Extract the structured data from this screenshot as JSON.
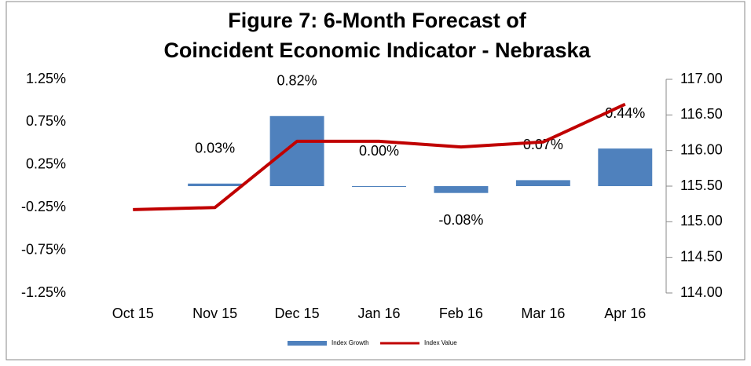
{
  "chart_data": {
    "type": "bar_line",
    "title": [
      "Figure 7: 6-Month Forecast of",
      "Coincident Economic Indicator - Nebraska"
    ],
    "categories": [
      "Oct 15",
      "Nov 15",
      "Dec 15",
      "Jan 16",
      "Feb 16",
      "Mar 16",
      "Apr 16"
    ],
    "series": [
      {
        "name": "Index Growth",
        "type": "bar",
        "color": "#4f81bd",
        "axis": "y",
        "values": [
          null,
          0.03,
          0.82,
          0.0,
          -0.08,
          0.07,
          0.44
        ],
        "value_labels": [
          null,
          "0.03%",
          "0.82%",
          "0.00%",
          "-0.08%",
          "0.07%",
          "0.44%"
        ]
      },
      {
        "name": "Index Value",
        "type": "line",
        "color": "#c00000",
        "axis": "y2",
        "values": [
          115.17,
          115.2,
          116.13,
          116.13,
          116.05,
          116.12,
          116.65
        ]
      }
    ],
    "ylim": [
      -1.25,
      1.25
    ],
    "yticks": [
      {
        "value": -1.25,
        "label": "-1.25%"
      },
      {
        "value": -0.75,
        "label": "-0.75%"
      },
      {
        "value": -0.25,
        "label": "-0.25%"
      },
      {
        "value": 0.25,
        "label": "0.25%"
      },
      {
        "value": 0.75,
        "label": "0.75%"
      },
      {
        "value": 1.25,
        "label": "1.25%"
      }
    ],
    "y2lim": [
      114,
      117
    ],
    "y2ticks": [
      {
        "value": 114,
        "label": "114.00"
      },
      {
        "value": 114.5,
        "label": "114.50"
      },
      {
        "value": 115,
        "label": "115.00"
      },
      {
        "value": 115.5,
        "label": "115.50"
      },
      {
        "value": 116,
        "label": "116.00"
      },
      {
        "value": 116.5,
        "label": "116.50"
      },
      {
        "value": 117,
        "label": "117.00"
      }
    ],
    "legend": "bottom"
  }
}
